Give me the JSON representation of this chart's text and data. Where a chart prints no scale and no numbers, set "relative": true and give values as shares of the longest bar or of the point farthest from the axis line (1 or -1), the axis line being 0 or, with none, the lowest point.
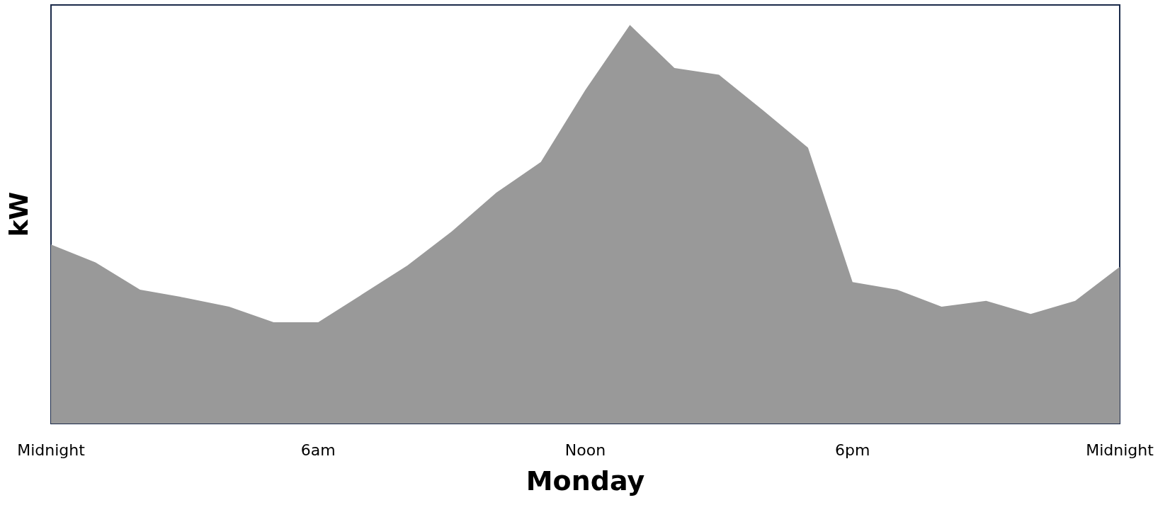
{
  "chart_data": {
    "type": "area",
    "relative": true,
    "xlabel": "Monday",
    "ylabel": "kW",
    "categories": [
      "Midnight",
      null,
      null,
      null,
      null,
      null,
      "6am",
      null,
      null,
      null,
      null,
      null,
      "Noon",
      null,
      null,
      null,
      null,
      null,
      "6pm",
      null,
      null,
      null,
      null,
      null,
      "Midnight"
    ],
    "series": [
      {
        "color": "#999999",
        "values": [
          0.449,
          0.404,
          0.336,
          0.316,
          0.293,
          0.254,
          0.254,
          0.325,
          0.396,
          0.482,
          0.579,
          0.656,
          0.837,
          1,
          0.892,
          0.875,
          0.785,
          0.692,
          0.355,
          0.336,
          0.293,
          0.308,
          0.275,
          0.308,
          0.393
        ]
      }
    ],
    "marker": "none"
  }
}
